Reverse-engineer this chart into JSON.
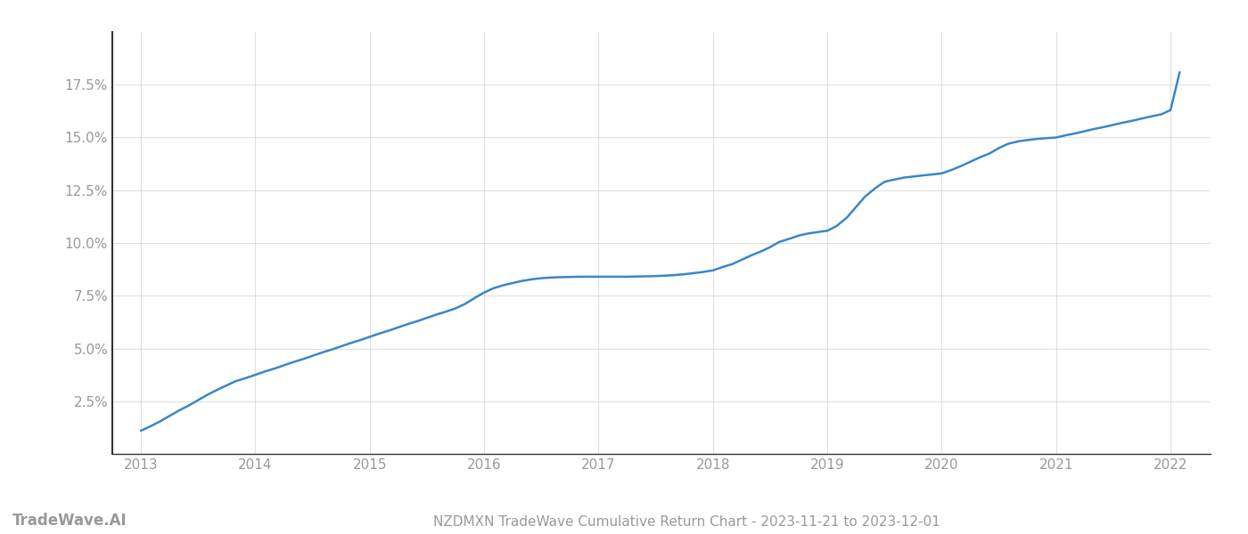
{
  "title": "NZDMXN TradeWave Cumulative Return Chart - 2023-11-21 to 2023-12-01",
  "watermark": "TradeWave.AI",
  "line_color": "#3a86c8",
  "background_color": "#ffffff",
  "grid_color": "#cccccc",
  "x_values": [
    2013.0,
    2013.08,
    2013.17,
    2013.25,
    2013.33,
    2013.42,
    2013.5,
    2013.58,
    2013.67,
    2013.75,
    2013.83,
    2013.92,
    2014.0,
    2014.08,
    2014.17,
    2014.25,
    2014.33,
    2014.42,
    2014.5,
    2014.58,
    2014.67,
    2014.75,
    2014.83,
    2014.92,
    2015.0,
    2015.08,
    2015.17,
    2015.25,
    2015.33,
    2015.42,
    2015.5,
    2015.58,
    2015.67,
    2015.75,
    2015.83,
    2015.92,
    2016.0,
    2016.08,
    2016.17,
    2016.25,
    2016.33,
    2016.42,
    2016.5,
    2016.58,
    2016.67,
    2016.75,
    2016.83,
    2016.92,
    2017.0,
    2017.08,
    2017.17,
    2017.25,
    2017.33,
    2017.42,
    2017.5,
    2017.58,
    2017.67,
    2017.75,
    2017.83,
    2017.92,
    2018.0,
    2018.08,
    2018.17,
    2018.25,
    2018.33,
    2018.42,
    2018.5,
    2018.58,
    2018.67,
    2018.75,
    2018.83,
    2018.92,
    2019.0,
    2019.08,
    2019.17,
    2019.25,
    2019.33,
    2019.42,
    2019.5,
    2019.58,
    2019.67,
    2019.75,
    2019.83,
    2019.92,
    2020.0,
    2020.08,
    2020.17,
    2020.25,
    2020.33,
    2020.42,
    2020.5,
    2020.58,
    2020.67,
    2020.75,
    2020.83,
    2020.92,
    2021.0,
    2021.08,
    2021.17,
    2021.25,
    2021.33,
    2021.42,
    2021.5,
    2021.58,
    2021.67,
    2021.75,
    2021.83,
    2021.92,
    2022.0,
    2022.08
  ],
  "y_values": [
    1.1,
    1.3,
    1.55,
    1.8,
    2.05,
    2.3,
    2.55,
    2.8,
    3.05,
    3.25,
    3.45,
    3.6,
    3.75,
    3.9,
    4.05,
    4.2,
    4.35,
    4.5,
    4.65,
    4.8,
    4.95,
    5.1,
    5.25,
    5.4,
    5.55,
    5.7,
    5.85,
    6.0,
    6.15,
    6.3,
    6.45,
    6.6,
    6.75,
    6.9,
    7.1,
    7.4,
    7.65,
    7.85,
    8.0,
    8.1,
    8.2,
    8.28,
    8.33,
    8.36,
    8.38,
    8.39,
    8.4,
    8.4,
    8.4,
    8.4,
    8.4,
    8.4,
    8.41,
    8.42,
    8.43,
    8.45,
    8.48,
    8.52,
    8.57,
    8.63,
    8.7,
    8.85,
    9.0,
    9.2,
    9.4,
    9.6,
    9.8,
    10.05,
    10.2,
    10.35,
    10.45,
    10.52,
    10.58,
    10.8,
    11.2,
    11.7,
    12.2,
    12.6,
    12.9,
    13.0,
    13.1,
    13.15,
    13.2,
    13.25,
    13.3,
    13.45,
    13.65,
    13.85,
    14.05,
    14.25,
    14.5,
    14.7,
    14.82,
    14.88,
    14.93,
    14.97,
    15.0,
    15.1,
    15.2,
    15.3,
    15.4,
    15.5,
    15.6,
    15.7,
    15.8,
    15.9,
    16.0,
    16.1,
    16.3,
    18.1
  ],
  "xlim": [
    2012.75,
    2022.35
  ],
  "ylim": [
    0,
    20
  ],
  "yticks": [
    2.5,
    5.0,
    7.5,
    10.0,
    12.5,
    15.0,
    17.5
  ],
  "xticks": [
    2013,
    2014,
    2015,
    2016,
    2017,
    2018,
    2019,
    2020,
    2021,
    2022
  ],
  "tick_label_color": "#999999",
  "left_spine_color": "#333333",
  "bottom_spine_color": "#333333",
  "grid_color_alpha": 0.6,
  "line_width": 1.8,
  "title_fontsize": 11,
  "watermark_fontsize": 12,
  "tick_fontsize": 11
}
